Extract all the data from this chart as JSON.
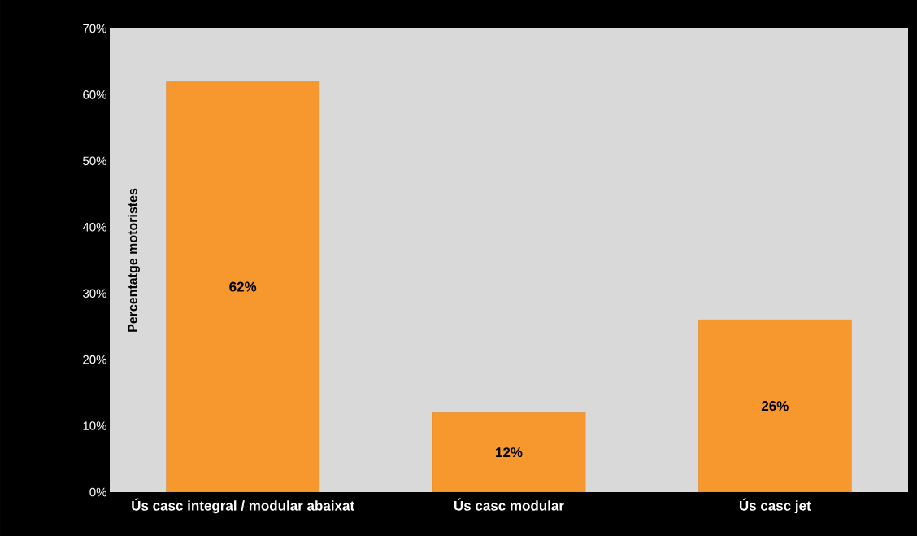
{
  "chart_data": {
    "type": "bar",
    "ylabel": "Percentatge motoristes",
    "categories": [
      "Ús casc integral / modular abaixat",
      "Ús casc modular",
      "Ús casc jet"
    ],
    "values": [
      62,
      12,
      26
    ],
    "color": "#f7982f",
    "value_labels": [
      "62%",
      "12%",
      "26%"
    ],
    "ylim": [
      0,
      70
    ],
    "yticks": [
      {
        "value": 0,
        "label": "0%"
      },
      {
        "value": 10,
        "label": "10%"
      },
      {
        "value": 20,
        "label": "20%"
      },
      {
        "value": 30,
        "label": "30%"
      },
      {
        "value": 40,
        "label": "40%"
      },
      {
        "value": 50,
        "label": "50%"
      },
      {
        "value": 60,
        "label": "60%"
      },
      {
        "value": 70,
        "label": "70%"
      }
    ]
  }
}
